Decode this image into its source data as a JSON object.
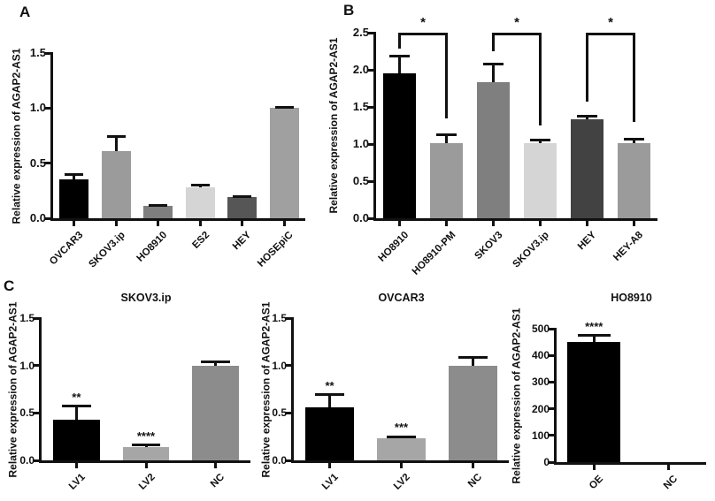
{
  "figure": {
    "panels": [
      {
        "label": "A"
      },
      {
        "label": "B"
      },
      {
        "label": "C"
      }
    ]
  },
  "colors": {
    "axis": "#111111",
    "black_bar": "#000000",
    "medium_gray": "#9b9b9b",
    "dark_gray": "#4f4f4f",
    "light_gray": "#d5d5d5"
  },
  "chart_data": [
    {
      "id": "A",
      "panel": "A",
      "type": "bar",
      "title": "",
      "ylabel": "Relative expression of AGAP2-AS1",
      "ylim": [
        0,
        1.5
      ],
      "yticks": [
        "0.0",
        "0.5",
        "1.0",
        "1.5"
      ],
      "categories": [
        "OVCAR3",
        "SKOV3.ip",
        "HO8910",
        "ES2",
        "HEY",
        "HOSEpiC"
      ],
      "values": [
        0.35,
        0.61,
        0.11,
        0.28,
        0.19,
        1.0
      ],
      "errors": [
        0.05,
        0.13,
        0.01,
        0.02,
        0.01,
        0.01
      ],
      "colors": [
        "#000000",
        "#9b9b9b",
        "#7f7f7f",
        "#d5d5d5",
        "#565656",
        "#a0a0a0"
      ],
      "sig": [
        "",
        "",
        "",
        "",
        "",
        ""
      ],
      "comparisons": []
    },
    {
      "id": "B",
      "panel": "B",
      "type": "bar",
      "title": "",
      "ylabel": "Relative expression of AGAP2-AS1",
      "ylim": [
        0,
        2.5
      ],
      "yticks": [
        "0.0",
        "0.5",
        "1.0",
        "1.5",
        "2.0",
        "2.5"
      ],
      "categories": [
        "HO8910",
        "HO8910-PM",
        "SKOV3",
        "SKOV3.ip",
        "HEY",
        "HEY-A8"
      ],
      "values": [
        1.95,
        1.01,
        1.83,
        1.01,
        1.33,
        1.01
      ],
      "errors": [
        0.24,
        0.12,
        0.25,
        0.04,
        0.05,
        0.05
      ],
      "colors": [
        "#000000",
        "#9b9b9b",
        "#7f7f7f",
        "#d5d5d5",
        "#424242",
        "#9b9b9b"
      ],
      "sig": [
        "",
        "",
        "",
        "",
        "",
        ""
      ],
      "comparisons": [
        {
          "group1": "HO8910",
          "group2": "HO8910-PM",
          "label": "*",
          "top_y": 2.5,
          "leg1_y": 2.28,
          "leg2_y": 1.35
        },
        {
          "group1": "SKOV3",
          "group2": "SKOV3.ip",
          "label": "*",
          "top_y": 2.5,
          "leg1_y": 2.25,
          "leg2_y": 1.25
        },
        {
          "group1": "HEY",
          "group2": "HEY-A8",
          "label": "*",
          "top_y": 2.5,
          "leg1_y": 1.57,
          "leg2_y": 1.3
        }
      ]
    },
    {
      "id": "C1",
      "panel": "C",
      "type": "bar",
      "title": "SKOV3.ip",
      "ylabel": "Relative expression of AGAP2-AS1",
      "ylim": [
        0,
        1.5
      ],
      "yticks": [
        "0.0",
        "0.5",
        "1.0",
        "1.5"
      ],
      "categories": [
        "LV1",
        "LV2",
        "NC"
      ],
      "values": [
        0.43,
        0.14,
        1.0
      ],
      "errors": [
        0.14,
        0.02,
        0.04
      ],
      "colors": [
        "#000000",
        "#a6a6a6",
        "#8c8c8c"
      ],
      "sig": [
        "**",
        "****",
        ""
      ],
      "comparisons": []
    },
    {
      "id": "C2",
      "panel": "C",
      "type": "bar",
      "title": "OVCAR3",
      "ylabel": "Relative expression of AGAP2-AS1",
      "ylim": [
        0,
        1.5
      ],
      "yticks": [
        "0.0",
        "0.5",
        "1.0",
        "1.5"
      ],
      "categories": [
        "LV1",
        "LV2",
        "NC"
      ],
      "values": [
        0.56,
        0.23,
        1.0
      ],
      "errors": [
        0.13,
        0.02,
        0.09
      ],
      "colors": [
        "#000000",
        "#a6a6a6",
        "#8c8c8c"
      ],
      "sig": [
        "**",
        "***",
        ""
      ],
      "comparisons": []
    },
    {
      "id": "C3",
      "panel": "C",
      "type": "bar",
      "title": "HO8910",
      "ylabel": "Relative expression of AGAP2-AS1",
      "ylim": [
        0,
        500
      ],
      "yticks": [
        "0",
        "100",
        "200",
        "300",
        "400",
        "500"
      ],
      "categories": [
        "OE",
        "NC"
      ],
      "values": [
        450,
        1
      ],
      "errors": [
        25,
        0
      ],
      "colors": [
        "#000000",
        "#8c8c8c"
      ],
      "sig": [
        "****",
        ""
      ],
      "comparisons": []
    }
  ]
}
